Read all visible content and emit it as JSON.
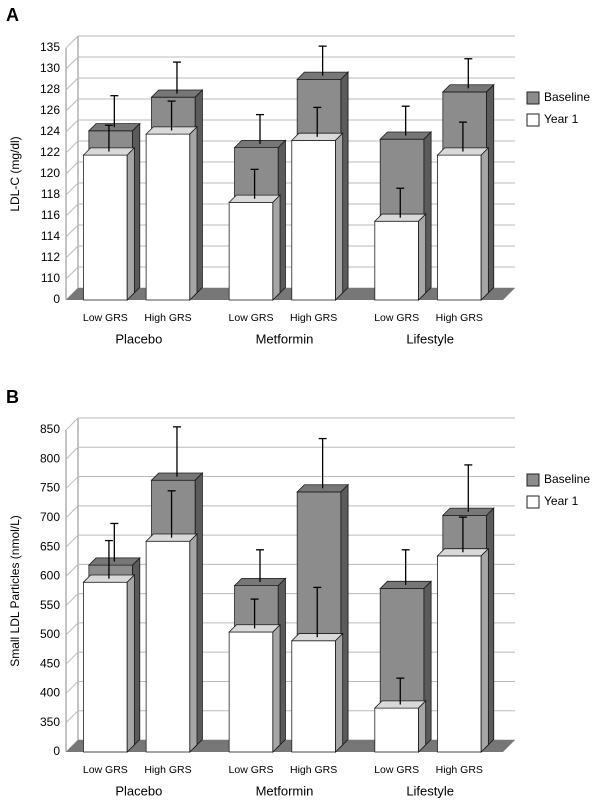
{
  "chart_data": [
    {
      "type": "bar3d",
      "panel_label": "A",
      "ylabel": "LDL-C (mg/dl)",
      "groups": [
        "Placebo",
        "Metformin",
        "Lifestyle"
      ],
      "categories": [
        "Low GRS",
        "High GRS",
        "Low GRS",
        "High GRS",
        "Low GRS",
        "High GRS"
      ],
      "series": [
        {
          "name": "Baseline",
          "color": "#8c8c8c",
          "values": [
            123.6,
            126.8,
            122,
            128.5,
            122.8,
            127.3
          ],
          "errors": [
            3,
            3,
            2.8,
            4.8,
            2.8,
            3
          ]
        },
        {
          "name": "Year 1",
          "color": "#ffffff",
          "values": [
            121.8,
            123.8,
            117.3,
            123.2,
            115.5,
            121.8
          ],
          "errors": [
            2.5,
            2.8,
            2.8,
            2.8,
            2.8,
            2.8
          ]
        }
      ],
      "ylim": [
        0,
        135
      ],
      "yticks": [
        0,
        110,
        112,
        114,
        116,
        118,
        120,
        122,
        124,
        126,
        128,
        130,
        135
      ],
      "grid": true,
      "legend": "right"
    },
    {
      "type": "bar3d",
      "panel_label": "B",
      "ylabel": "Small LDL Particles (nmol/L)",
      "groups": [
        "Placebo",
        "Metformin",
        "Lifestyle"
      ],
      "categories": [
        "Low GRS",
        "High GRS",
        "Low GRS",
        "High GRS",
        "Low GRS",
        "High GRS"
      ],
      "series": [
        {
          "name": "Baseline",
          "color": "#8c8c8c",
          "values": [
            610,
            755,
            575,
            735,
            570,
            695
          ],
          "errors": [
            65,
            85,
            55,
            85,
            60,
            80
          ]
        },
        {
          "name": "Year 1",
          "color": "#ffffff",
          "values": [
            590,
            660,
            505,
            490,
            375,
            635
          ],
          "errors": [
            65,
            80,
            50,
            85,
            45,
            60
          ]
        }
      ],
      "ylim": [
        0,
        850
      ],
      "yticks": [
        0,
        350,
        400,
        450,
        500,
        550,
        600,
        650,
        700,
        750,
        800,
        850
      ],
      "grid": true,
      "legend": "right"
    }
  ]
}
